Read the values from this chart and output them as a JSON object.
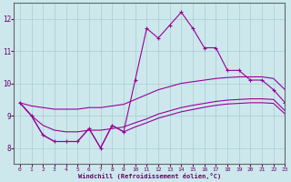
{
  "xlabel": "Windchill (Refroidissement éolien,°C)",
  "background_color": "#cce8ed",
  "line_color": "#990099",
  "x_data": [
    0,
    1,
    2,
    3,
    4,
    5,
    6,
    7,
    8,
    9,
    10,
    11,
    12,
    13,
    14,
    15,
    16,
    17,
    18,
    19,
    20,
    21,
    22,
    23
  ],
  "line_main": [
    9.4,
    9.0,
    8.4,
    8.2,
    8.2,
    8.2,
    8.6,
    8.0,
    8.7,
    8.5,
    10.1,
    11.7,
    11.4,
    11.8,
    12.2,
    11.7,
    11.1,
    11.1,
    10.4,
    10.4,
    10.1,
    10.1,
    9.8,
    9.4
  ],
  "line_top": [
    9.4,
    9.3,
    9.25,
    9.2,
    9.2,
    9.2,
    9.25,
    9.25,
    9.3,
    9.35,
    9.5,
    9.65,
    9.8,
    9.9,
    10.0,
    10.05,
    10.1,
    10.15,
    10.18,
    10.2,
    10.2,
    10.2,
    10.15,
    9.8
  ],
  "line_mid": [
    9.4,
    9.0,
    8.7,
    8.55,
    8.5,
    8.5,
    8.55,
    8.55,
    8.6,
    8.65,
    8.78,
    8.9,
    9.05,
    9.15,
    9.25,
    9.32,
    9.38,
    9.44,
    9.48,
    9.5,
    9.52,
    9.52,
    9.5,
    9.15
  ],
  "line_bot": [
    9.4,
    9.0,
    8.4,
    8.2,
    8.2,
    8.2,
    8.6,
    8.0,
    8.7,
    8.5,
    8.65,
    8.78,
    8.92,
    9.02,
    9.12,
    9.19,
    9.26,
    9.32,
    9.36,
    9.38,
    9.4,
    9.4,
    9.38,
    9.05
  ],
  "xlim": [
    -0.5,
    23
  ],
  "ylim": [
    7.5,
    12.5
  ],
  "yticks": [
    8,
    9,
    10,
    11,
    12
  ],
  "xticks": [
    0,
    1,
    2,
    3,
    4,
    5,
    6,
    7,
    8,
    9,
    10,
    11,
    12,
    13,
    14,
    15,
    16,
    17,
    18,
    19,
    20,
    21,
    22,
    23
  ],
  "grid_color": "#aacccc"
}
